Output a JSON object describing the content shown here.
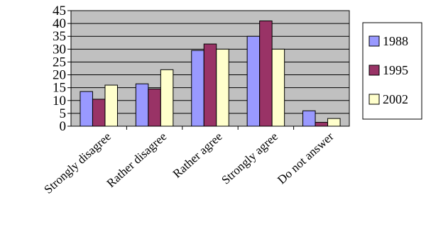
{
  "chart_data": {
    "type": "bar",
    "title": "",
    "xlabel": "",
    "ylabel": "",
    "ylim": [
      0,
      45
    ],
    "yticks": [
      0,
      5,
      10,
      15,
      20,
      25,
      30,
      35,
      40,
      45
    ],
    "grid": true,
    "legend_position": "right",
    "plot_background": "#c0c0c0",
    "categories": [
      "Strongly disagree",
      "Rather disagree",
      "Rather agree",
      "Strongly agree",
      "Do not answer"
    ],
    "series": [
      {
        "name": "1988",
        "color": "#9999ff",
        "values": [
          13.5,
          16.5,
          29.5,
          35,
          6
        ]
      },
      {
        "name": "1995",
        "color": "#993366",
        "values": [
          10.5,
          14.5,
          32,
          41,
          1.5
        ]
      },
      {
        "name": "2002",
        "color": "#ffffcc",
        "values": [
          16,
          22,
          30,
          30,
          3
        ]
      }
    ]
  }
}
